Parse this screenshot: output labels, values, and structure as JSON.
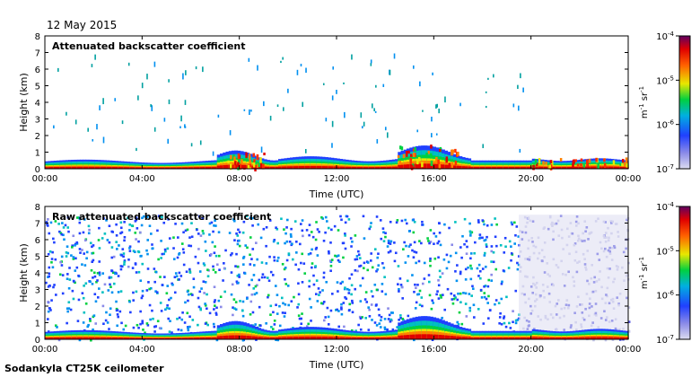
{
  "date_text": "12 May 2015",
  "instrument_label": "Sodankyla CT25K ceilometer",
  "chart_data": [
    {
      "type": "heatmap",
      "title": "Attenuated backscatter coefficient",
      "xlabel": "Time (UTC)",
      "ylabel": "Height (km)",
      "xlim_hours": [
        0,
        24
      ],
      "ylim": [
        0,
        8
      ],
      "x_ticks": [
        "00:00",
        "04:00",
        "08:00",
        "12:00",
        "16:00",
        "20:00",
        "00:00"
      ],
      "y_ticks": [
        "0",
        "1",
        "2",
        "3",
        "4",
        "5",
        "6",
        "7",
        "8"
      ],
      "colorbar": {
        "scale": "log",
        "range": [
          1e-07,
          0.0001
        ],
        "unit_label": "m-1 sr-1",
        "ticks": [
          "10-7",
          "10-6",
          "10-5",
          "10-4"
        ]
      },
      "features": {
        "boundary_layer_top_km": 0.5,
        "cloud_patches": [
          {
            "start_h": 7.5,
            "end_h": 9.0,
            "top_km": 1.0
          },
          {
            "start_h": 14.5,
            "end_h": 17.0,
            "top_km": 1.5
          },
          {
            "start_h": 20.0,
            "end_h": 24.0,
            "top_km": 0.7
          }
        ]
      }
    },
    {
      "type": "heatmap",
      "title": "Raw attenuated backscatter coefficient",
      "xlabel": "Time (UTC)",
      "ylabel": "Height (km)",
      "xlim_hours": [
        0,
        24
      ],
      "ylim": [
        0,
        8
      ],
      "x_ticks": [
        "00:00",
        "04:00",
        "08:00",
        "12:00",
        "16:00",
        "20:00",
        "00:00"
      ],
      "y_ticks": [
        "0",
        "1",
        "2",
        "3",
        "4",
        "5",
        "6",
        "7",
        "8"
      ],
      "colorbar": {
        "scale": "log",
        "range": [
          1e-07,
          0.0001
        ],
        "unit_label": "m-1 sr-1",
        "ticks": [
          "10-7",
          "10-6",
          "10-5",
          "10-4"
        ]
      },
      "features": {
        "noise_top_km": 7.5,
        "noise_until_h": 19.5
      }
    }
  ]
}
